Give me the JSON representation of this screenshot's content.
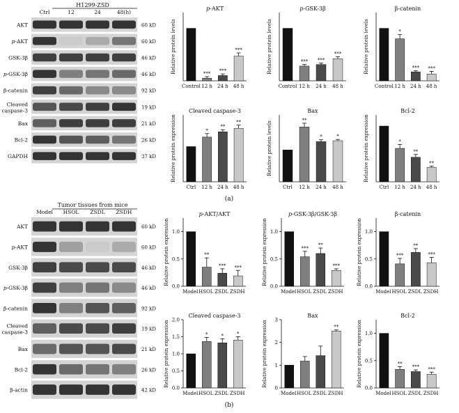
{
  "panel_labels": [
    "(a)",
    "(b)"
  ],
  "panels": [
    {
      "header": "H1299-ZSD",
      "lanes": [
        "Ctrl",
        "12",
        "24",
        "48(h)"
      ],
      "rows": [
        {
          "label": "AKT",
          "kd": "60 kD",
          "levels": [
            0.85,
            0.85,
            0.85,
            0.85
          ]
        },
        {
          "label": "p-AKT",
          "italic_prefix": "p",
          "kd": "60 kD",
          "levels": [
            0.85,
            0.15,
            0.3,
            0.55
          ]
        },
        {
          "label": "GSK-3β",
          "kd": "46 kD",
          "levels": [
            0.8,
            0.8,
            0.8,
            0.8
          ]
        },
        {
          "label": "p-GSK-3β",
          "italic_prefix": "p",
          "kd": "46 kD",
          "levels": [
            0.85,
            0.5,
            0.55,
            0.6
          ]
        },
        {
          "label": "β-catenin",
          "kd": "92 kD",
          "levels": [
            0.8,
            0.6,
            0.45,
            0.45
          ]
        },
        {
          "label": "Cleaved caspase-3",
          "kd": "19 kD",
          "levels": [
            0.7,
            0.75,
            0.8,
            0.85
          ]
        },
        {
          "label": "Bax",
          "kd": "21 kD",
          "levels": [
            0.65,
            0.8,
            0.8,
            0.8
          ]
        },
        {
          "label": "Bcl-2",
          "kd": "26 kD",
          "levels": [
            0.85,
            0.7,
            0.65,
            0.55
          ]
        },
        {
          "label": "GAPDH",
          "kd": "37 kD",
          "levels": [
            0.85,
            0.85,
            0.85,
            0.85
          ]
        }
      ]
    },
    {
      "header": "Tumor tissues from mice",
      "lanes": [
        "Model",
        "HSOL",
        "ZSDL",
        "ZSDH"
      ],
      "rows": [
        {
          "label": "AKT",
          "kd": "60 kD",
          "levels": [
            0.85,
            0.85,
            0.85,
            0.85
          ]
        },
        {
          "label": "p-AKT",
          "italic_prefix": "p",
          "kd": "60 kD",
          "levels": [
            0.85,
            0.35,
            0.15,
            0.3
          ]
        },
        {
          "label": "GSK-3β",
          "kd": "46 kD",
          "levels": [
            0.8,
            0.75,
            0.75,
            0.75
          ]
        },
        {
          "label": "p-GSK-3β",
          "italic_prefix": "p",
          "kd": "46 kD",
          "levels": [
            0.8,
            0.5,
            0.55,
            0.45
          ]
        },
        {
          "label": "β-catenin",
          "kd": "92 kD",
          "levels": [
            0.85,
            0.5,
            0.7,
            0.65
          ]
        },
        {
          "label": "Cleaved caspase-3",
          "kd": "19 kD",
          "levels": [
            0.65,
            0.75,
            0.75,
            0.8
          ]
        },
        {
          "label": "Bax",
          "kd": "21 kD",
          "levels": [
            0.6,
            0.7,
            0.7,
            0.75
          ]
        },
        {
          "label": "Bcl-2",
          "kd": "26 kD",
          "levels": [
            0.85,
            0.6,
            0.55,
            0.5
          ]
        },
        {
          "label": "β-actin",
          "kd": "42 kD",
          "levels": [
            0.85,
            0.85,
            0.85,
            0.85
          ]
        }
      ]
    }
  ],
  "chart_data": [
    {
      "type": "bar",
      "panel": "a",
      "title": "p-AKT",
      "ylabel": "Relative protein levels",
      "categories": [
        "Control",
        "12 h",
        "24 h",
        "48 h"
      ],
      "values": [
        1.0,
        0.05,
        0.1,
        0.47
      ],
      "errors": [
        0,
        0.03,
        0.03,
        0.06
      ],
      "significance": [
        "",
        "***",
        "***",
        "***"
      ],
      "ylim": [
        0,
        1.3
      ],
      "ticks": []
    },
    {
      "type": "bar",
      "panel": "a",
      "title": "p-GSK-3β",
      "ylabel": "Relative protein levels",
      "categories": [
        "Control",
        "12 h",
        "24 h",
        "48 h"
      ],
      "values": [
        1.0,
        0.28,
        0.31,
        0.42
      ],
      "errors": [
        0,
        0.03,
        0.03,
        0.04
      ],
      "significance": [
        "",
        "***",
        "***",
        "***"
      ],
      "ylim": [
        0,
        1.3
      ],
      "ticks": []
    },
    {
      "type": "bar",
      "panel": "a",
      "title": "β-catenin",
      "ylabel": "Relative protein levels",
      "categories": [
        "Control",
        "12 h",
        "24 h",
        "48 h"
      ],
      "values": [
        1.0,
        0.8,
        0.17,
        0.13
      ],
      "errors": [
        0,
        0.08,
        0.02,
        0.05
      ],
      "significance": [
        "",
        "*",
        "***",
        "***"
      ],
      "ylim": [
        0,
        1.3
      ],
      "ticks": []
    },
    {
      "type": "bar",
      "panel": "a",
      "title": "Cleaved caspase-3",
      "ylabel": "Relative protein expression",
      "categories": [
        "Ctrl",
        "12 h",
        "24 h",
        "48 h"
      ],
      "values": [
        1.0,
        1.27,
        1.42,
        1.52
      ],
      "errors": [
        0,
        0.1,
        0.06,
        0.09
      ],
      "significance": [
        "",
        "*",
        "**",
        "**"
      ],
      "ylim": [
        0,
        1.9
      ],
      "ticks": []
    },
    {
      "type": "bar",
      "panel": "a",
      "title": "Bax",
      "ylabel": "Relative protein levels",
      "categories": [
        "Ctrl",
        "12 h",
        "24 h",
        "48 h"
      ],
      "values": [
        1.0,
        1.72,
        1.26,
        1.29
      ],
      "errors": [
        0,
        0.12,
        0.06,
        0.04
      ],
      "significance": [
        "",
        "**",
        "*",
        "*"
      ],
      "ylim": [
        0,
        2.1
      ],
      "ticks": []
    },
    {
      "type": "bar",
      "panel": "a",
      "title": "Bcl-2",
      "ylabel": "Relative protein expression",
      "categories": [
        "Ctrl",
        "12 h",
        "24 h",
        "48 h"
      ],
      "values": [
        1.0,
        0.6,
        0.44,
        0.26
      ],
      "errors": [
        0,
        0.07,
        0.05,
        0.02
      ],
      "significance": [
        "",
        "*",
        "**",
        "**"
      ],
      "ylim": [
        0,
        1.2
      ],
      "ticks": []
    },
    {
      "type": "bar",
      "panel": "b",
      "title": "p-AKT/AKT",
      "ylabel": "Relative protein expression",
      "categories": [
        "Model",
        "HSOL",
        "ZSDL",
        "ZSDH"
      ],
      "values": [
        1.0,
        0.35,
        0.24,
        0.19
      ],
      "errors": [
        0,
        0.17,
        0.08,
        0.1
      ],
      "significance": [
        "",
        "**",
        "***",
        "***"
      ],
      "ylim": [
        0,
        1.25
      ],
      "ticks": [
        "0.0",
        "0.5",
        "1.0"
      ]
    },
    {
      "type": "bar",
      "panel": "b",
      "title": "p-GSK-3β/GSK-3β",
      "ylabel": "Relative protein expression",
      "categories": [
        "Model",
        "HSOL",
        "ZSDL",
        "ZSDH"
      ],
      "values": [
        1.0,
        0.54,
        0.6,
        0.29
      ],
      "errors": [
        0,
        0.1,
        0.1,
        0.03
      ],
      "significance": [
        "",
        "***",
        "**",
        "***"
      ],
      "ylim": [
        0,
        1.25
      ],
      "ticks": [
        "0.0",
        "0.5",
        "1.0"
      ]
    },
    {
      "type": "bar",
      "panel": "b",
      "title": "β-catenin",
      "ylabel": "Relative protein expression",
      "categories": [
        "Model",
        "HSOL",
        "ZSDL",
        "ZSDH"
      ],
      "values": [
        1.0,
        0.41,
        0.62,
        0.43
      ],
      "errors": [
        0,
        0.1,
        0.07,
        0.1
      ],
      "significance": [
        "",
        "***",
        "**",
        "***"
      ],
      "ylim": [
        0,
        1.25
      ],
      "ticks": [
        "0.0",
        "0.5",
        "1.0"
      ]
    },
    {
      "type": "bar",
      "panel": "b",
      "title": "Cleaved caspase-3",
      "ylabel": "Relative protein expression",
      "categories": [
        "Model",
        "HSOL",
        "ZSDL",
        "ZSDH"
      ],
      "values": [
        1.0,
        1.36,
        1.32,
        1.4
      ],
      "errors": [
        0,
        0.12,
        0.12,
        0.1
      ],
      "significance": [
        "",
        "*",
        "*",
        "*"
      ],
      "ylim": [
        0,
        2.0
      ],
      "ticks": [
        "0.0",
        "0.5",
        "1.0",
        "1.5",
        "2.0"
      ]
    },
    {
      "type": "bar",
      "panel": "b",
      "title": "Bax",
      "ylabel": "Relative protein expression",
      "categories": [
        "Model",
        "HSOL",
        "ZSDL",
        "ZSDH"
      ],
      "values": [
        1.0,
        1.18,
        1.42,
        2.5
      ],
      "errors": [
        0,
        0.2,
        0.42,
        0.05
      ],
      "significance": [
        "",
        "",
        "",
        "**"
      ],
      "ylim": [
        0,
        3.0
      ],
      "ticks": [
        "0",
        "1",
        "2",
        "3"
      ]
    },
    {
      "type": "bar",
      "panel": "b",
      "title": "Bcl-2",
      "ylabel": "Relative protein expression",
      "categories": [
        "Model",
        "HSOL",
        "ZSDL",
        "ZSDH"
      ],
      "values": [
        1.0,
        0.34,
        0.3,
        0.25
      ],
      "errors": [
        0,
        0.05,
        0.03,
        0.04
      ],
      "significance": [
        "",
        "**",
        "***",
        "***"
      ],
      "ylim": [
        0,
        1.25
      ],
      "ticks": [
        "0.0",
        "0.5",
        "1.0"
      ]
    }
  ],
  "colors": [
    "#111111",
    "#7f7f7f",
    "#4a4a4a",
    "#c8c8c8"
  ]
}
